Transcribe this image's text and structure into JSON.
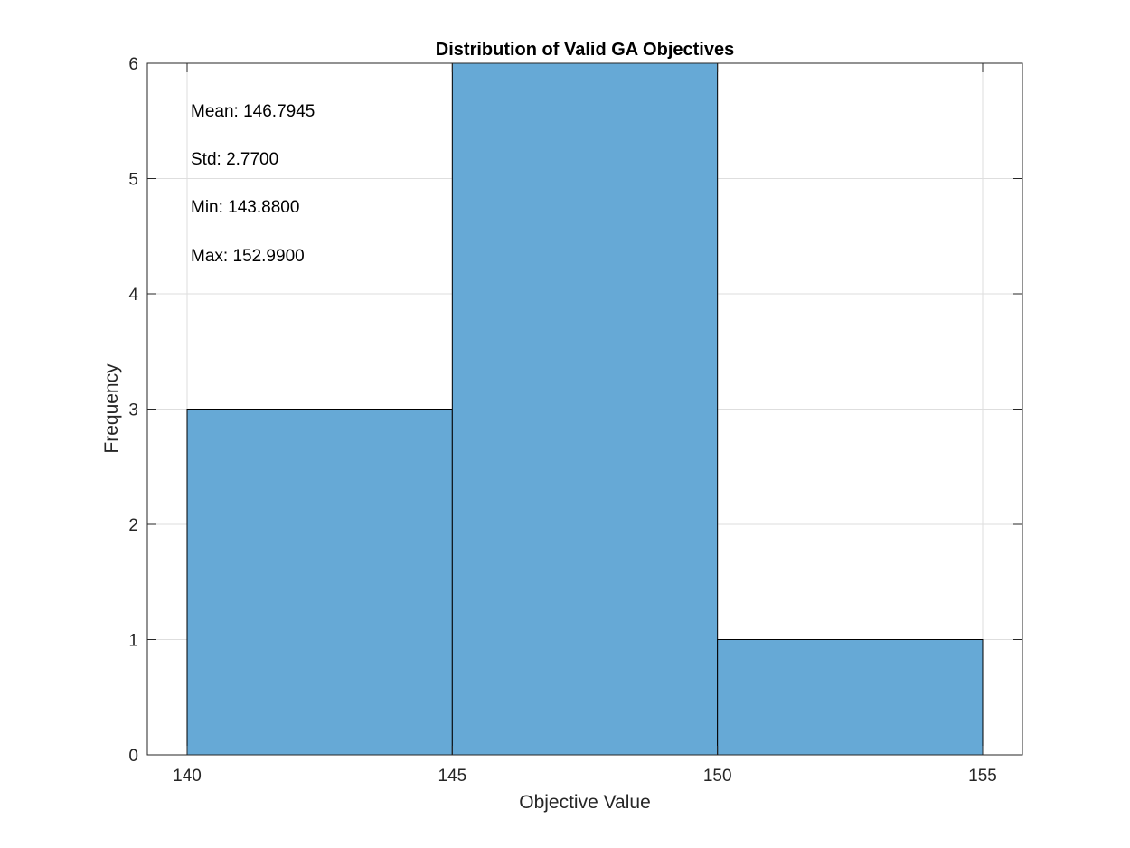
{
  "chart_data": {
    "type": "histogram",
    "title": "Distribution of Valid GA Objectives",
    "xlabel": "Objective Value",
    "ylabel": "Frequency",
    "xlim": [
      139.25,
      155.75
    ],
    "ylim": [
      0,
      6
    ],
    "xticks": [
      "140",
      "145",
      "150",
      "155"
    ],
    "xtick_values": [
      140,
      145,
      150,
      155
    ],
    "yticks": [
      "0",
      "1",
      "2",
      "3",
      "4",
      "5",
      "6"
    ],
    "ytick_values": [
      0,
      1,
      2,
      3,
      4,
      5,
      6
    ],
    "bin_edges": [
      140,
      145,
      150,
      155
    ],
    "counts": [
      3,
      6,
      1
    ],
    "grid": true,
    "bar_color": "#66a9d6",
    "annotations": [
      "Mean: 146.7945",
      "Std: 2.7700",
      "Min: 143.8800",
      "Max: 152.9900"
    ]
  }
}
